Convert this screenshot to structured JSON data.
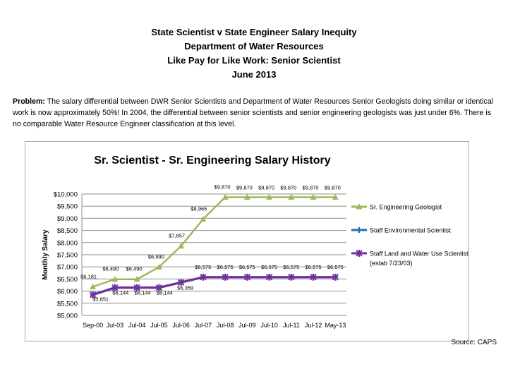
{
  "header": {
    "line1": "State Scientist v State Engineer Salary Inequity",
    "line2": "Department of Water Resources",
    "line3": "Like Pay for Like Work: Senior Scientist",
    "line4": "June 2013"
  },
  "problem": {
    "label": "Problem:",
    "text": "The salary differential between DWR Senior Scientists and Department of Water Resources Senior Geologists doing similar or identical work is now approximately 50%! In 2004, the differential between senior scientists and senior engineering geologists was just under 6%. There is no comparable Water Resource Engineer classification at this level."
  },
  "source": "Source: CAPS",
  "chart_data": {
    "type": "line",
    "title": "Sr. Scientist - Sr. Engineering Salary History",
    "xlabel": "",
    "ylabel": "Monthly Salary",
    "ylim": [
      5000,
      10000
    ],
    "ytick_step": 500,
    "yticks": [
      "$5,000",
      "$5,500",
      "$6,000",
      "$6,500",
      "$7,000",
      "$7,500",
      "$8,000",
      "$8,500",
      "$9,000",
      "$9,500",
      "$10,000"
    ],
    "categories": [
      "Sep-00",
      "Jul-03",
      "Jul-04",
      "Jul-05",
      "Jul-06",
      "Jul-07",
      "Jul-08",
      "Jul-09",
      "Jul-10",
      "Jul-11",
      "Jul-12",
      "May-13"
    ],
    "series": [
      {
        "name": "Sr. Engineering Geologist",
        "color": "#9bbb59",
        "marker": "triangle",
        "values": [
          6181,
          6490,
          6490,
          6990,
          7857,
          8965,
          9870,
          9870,
          9870,
          9870,
          9870,
          9870
        ],
        "labels": [
          "$6,181",
          "$6,490",
          "$6,490",
          "$6,990",
          "$7,857",
          "$8,965",
          "$9,870",
          "$9,870",
          "$9,870",
          "$9,870",
          "$9,870",
          "$9,870"
        ]
      },
      {
        "name": "Staff Environmental Scientist",
        "color": "#1f6fae",
        "marker": "star",
        "values": [
          5851,
          6144,
          6144,
          6144,
          6359,
          6575,
          6575,
          6575,
          6575,
          6575,
          6575,
          6575
        ],
        "labels": []
      },
      {
        "name": "Staff Land and Water Use Scientist",
        "name_line2": "(estab 7/23/03)",
        "color": "#7030a0",
        "marker": "x",
        "values": [
          5851,
          6144,
          6144,
          6144,
          6359,
          6575,
          6575,
          6575,
          6575,
          6575,
          6575,
          6575
        ],
        "labels": [
          "$5,851",
          "$6,144",
          "$6,144",
          "$6,144",
          "$6,359",
          "$6,575",
          "$6,575",
          "$6,575",
          "$6,575",
          "$6,575",
          "$6,575",
          "$6,575"
        ]
      }
    ],
    "grid": true,
    "legend": "right"
  }
}
